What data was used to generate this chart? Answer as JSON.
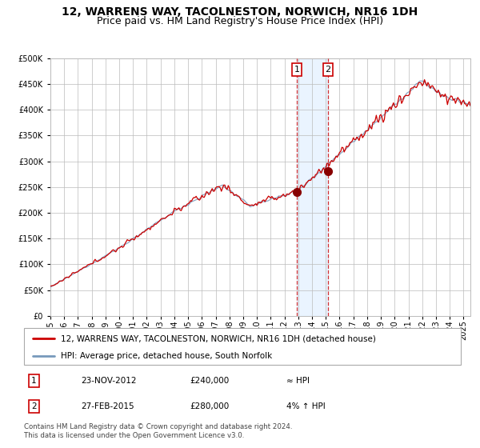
{
  "title": "12, WARRENS WAY, TACOLNESTON, NORWICH, NR16 1DH",
  "subtitle": "Price paid vs. HM Land Registry's House Price Index (HPI)",
  "ylim": [
    0,
    500000
  ],
  "yticks": [
    0,
    50000,
    100000,
    150000,
    200000,
    250000,
    300000,
    350000,
    400000,
    450000,
    500000
  ],
  "xlim_start": 1995.0,
  "xlim_end": 2025.5,
  "xtick_years": [
    1995,
    1996,
    1997,
    1998,
    1999,
    2000,
    2001,
    2002,
    2003,
    2004,
    2005,
    2006,
    2007,
    2008,
    2009,
    2010,
    2011,
    2012,
    2013,
    2014,
    2015,
    2016,
    2017,
    2018,
    2019,
    2020,
    2021,
    2022,
    2023,
    2024,
    2025
  ],
  "hpi_color": "#7799bb",
  "price_color": "#cc0000",
  "marker_color": "#880000",
  "grid_color": "#bbbbbb",
  "bg_color": "#ffffff",
  "transaction1_x": 2012.9,
  "transaction1_y": 240000,
  "transaction2_x": 2015.15,
  "transaction2_y": 280000,
  "vline1_x": 2012.9,
  "vline2_x": 2015.15,
  "shade_color": "#ddeeff",
  "legend_line1": "12, WARRENS WAY, TACOLNESTON, NORWICH, NR16 1DH (detached house)",
  "legend_line2": "HPI: Average price, detached house, South Norfolk",
  "table_row1": [
    "1",
    "23-NOV-2012",
    "£240,000",
    "≈ HPI"
  ],
  "table_row2": [
    "2",
    "27-FEB-2015",
    "£280,000",
    "4% ↑ HPI"
  ],
  "footer": "Contains HM Land Registry data © Crown copyright and database right 2024.\nThis data is licensed under the Open Government Licence v3.0.",
  "title_fontsize": 10,
  "subtitle_fontsize": 9,
  "tick_fontsize": 7,
  "legend_fontsize": 7.5,
  "annotation_fontsize": 8
}
